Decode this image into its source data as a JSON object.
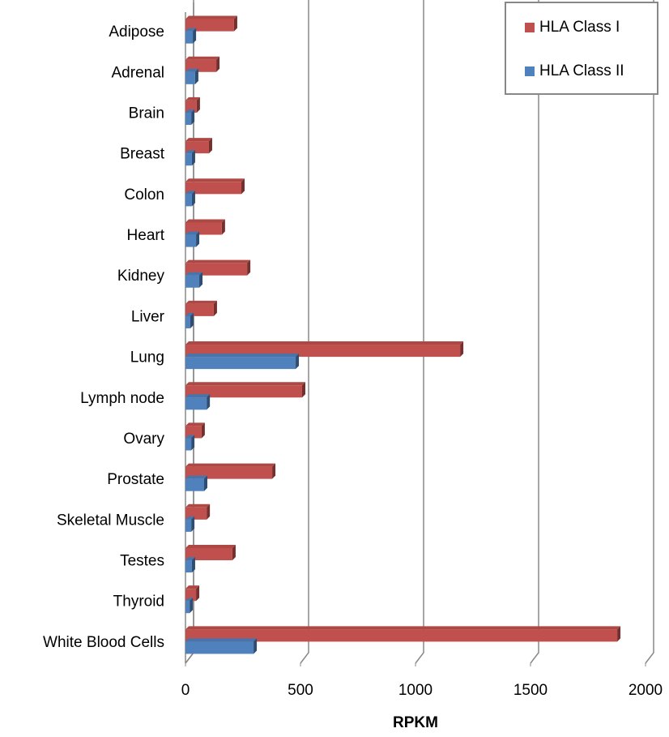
{
  "chart_data": {
    "type": "bar",
    "orientation": "horizontal",
    "x_label": "RPKM",
    "categories": [
      "Adipose",
      "Adrenal",
      "Brain",
      "Breast",
      "Colon",
      "Heart",
      "Kidney",
      "Liver",
      "Lung",
      "Lymph node",
      "Ovary",
      "Prostate",
      "Skeletal Muscle",
      "Testes",
      "Thyroid",
      "White Blood Cells"
    ],
    "series": [
      {
        "name": "HLA Class I",
        "color": "#c0504d",
        "values": [
          211,
          134,
          49,
          102,
          243,
          158,
          268,
          123,
          1194,
          507,
          70,
          377,
          92,
          204,
          46,
          1877
        ]
      },
      {
        "name": "HLA Class II",
        "color": "#4f81bd",
        "values": [
          32,
          42,
          25,
          28,
          28,
          46,
          60,
          21,
          479,
          92,
          25,
          81,
          25,
          28,
          18,
          296
        ]
      }
    ],
    "xlim": [
      0,
      2000
    ],
    "xticks": [
      0,
      500,
      1000,
      1500,
      2000
    ],
    "grid": true,
    "legend": "top-right"
  }
}
